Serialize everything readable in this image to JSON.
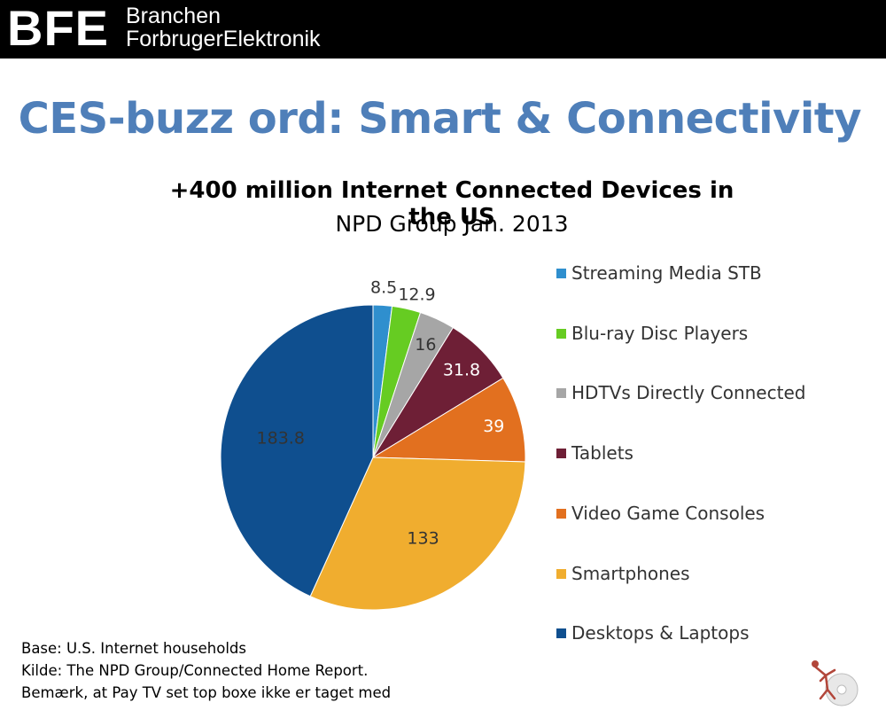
{
  "header": {
    "brand_mark": "BFE",
    "brand_line1": "Branchen",
    "brand_line2": "ForbrugerElektronik"
  },
  "slide_title": "CES-buzz ord: Smart & Connectivity",
  "chart_data": {
    "type": "pie",
    "title": "+400 million Internet Connected Devices in the US",
    "subtitle": "NPD Group Jan. 2013",
    "legend_position": "right",
    "slices": [
      {
        "label": "Streaming Media STB",
        "value": 8.5,
        "value_label": "8.5",
        "color": "#2f8fce",
        "label_color": "#333333"
      },
      {
        "label": "Blu-ray Disc Players",
        "value": 12.9,
        "value_label": "12.9",
        "color": "#66cc22",
        "label_color": "#333333"
      },
      {
        "label": "HDTVs Directly Connected",
        "value": 16,
        "value_label": "16",
        "color": "#a6a6a6",
        "label_color": "#333333"
      },
      {
        "label": "Tablets",
        "value": 31.8,
        "value_label": "31.8",
        "color": "#6e1f36",
        "label_color": "#ffffff"
      },
      {
        "label": "Video Game Consoles",
        "value": 39,
        "value_label": "39",
        "color": "#e2701f",
        "label_color": "#ffffff"
      },
      {
        "label": "Smartphones",
        "value": 133,
        "value_label": "133",
        "color": "#f0ad2f",
        "label_color": "#333333"
      },
      {
        "label": "Desktops & Laptops",
        "value": 183.8,
        "value_label": "183.8",
        "color": "#0f4f8f",
        "label_color": "#333333"
      }
    ]
  },
  "footnotes": [
    "Base: U.S. Internet households",
    "Kilde: The NPD Group/Connected Home Report.",
    "Bemærk,  at Pay TV set top boxe ikke er taget med"
  ],
  "logo_icon": "disc-figure-logo-icon"
}
